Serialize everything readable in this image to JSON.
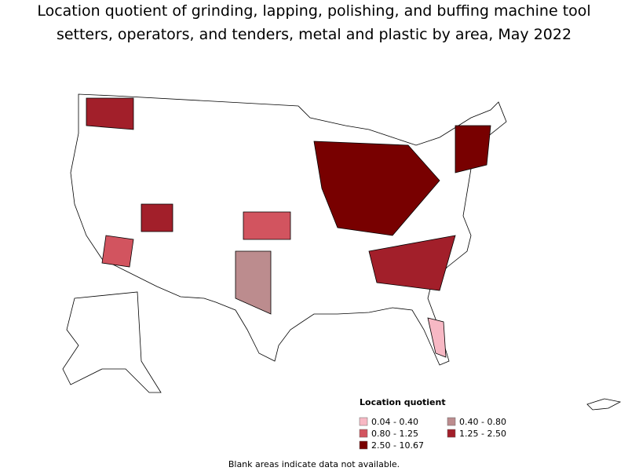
{
  "title": [
    "Location quotient of grinding, lapping, polishing, and buffing machine tool",
    "setters, operators, and tenders, metal and plastic by area, May 2022"
  ],
  "legend": {
    "title": "Location quotient",
    "entries": [
      {
        "label": "0.04 - 0.40",
        "color": "#f7b8c4"
      },
      {
        "label": "0.40 - 0.80",
        "color": "#bc8c8e"
      },
      {
        "label": "0.80 - 1.25",
        "color": "#d2545f"
      },
      {
        "label": "1.25 - 2.50",
        "color": "#a21f2a"
      },
      {
        "label": "2.50 - 10.67",
        "color": "#780000"
      }
    ]
  },
  "note": "Blank areas indicate data not available."
}
